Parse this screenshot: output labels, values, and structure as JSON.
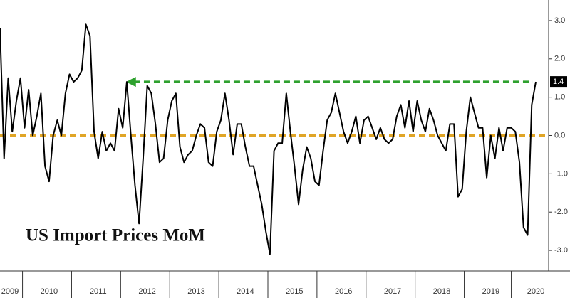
{
  "chart_data": {
    "type": "line",
    "title": "US Import Prices MoM",
    "categories": [
      "2009",
      null,
      null,
      null,
      null,
      null,
      null,
      null,
      null,
      null,
      null,
      null,
      "2010",
      null,
      null,
      null,
      null,
      null,
      null,
      null,
      null,
      null,
      null,
      null,
      "2011",
      null,
      null,
      null,
      null,
      null,
      null,
      null,
      null,
      null,
      null,
      null,
      "2012",
      null,
      null,
      null,
      null,
      null,
      null,
      null,
      null,
      null,
      null,
      null,
      "2013",
      null,
      null,
      null,
      null,
      null,
      null,
      null,
      null,
      null,
      null,
      null,
      "2014",
      null,
      null,
      null,
      null,
      null,
      null,
      null,
      null,
      null,
      null,
      null,
      "2015",
      null,
      null,
      null,
      null,
      null,
      null,
      null,
      null,
      null,
      null,
      null,
      "2016",
      null,
      null,
      null,
      null,
      null,
      null,
      null,
      null,
      null,
      null,
      null,
      "2017",
      null,
      null,
      null,
      null,
      null,
      null,
      null,
      null,
      null,
      null,
      null,
      "2018",
      null,
      null,
      null,
      null,
      null,
      null,
      null,
      null,
      null,
      null,
      null,
      "2019",
      null,
      null,
      null,
      null,
      null,
      null,
      null,
      null,
      null,
      null,
      "2020"
    ],
    "series": [
      {
        "name": "US Import Prices MoM",
        "color": "#000000",
        "values": [
          2.8,
          -0.6,
          1.5,
          0.1,
          0.9,
          1.5,
          0.2,
          1.2,
          0.0,
          0.5,
          1.1,
          -0.8,
          -1.2,
          0.0,
          0.4,
          0.0,
          1.1,
          1.6,
          1.4,
          1.5,
          1.7,
          2.9,
          2.6,
          0.1,
          -0.6,
          0.1,
          -0.4,
          -0.2,
          -0.4,
          0.7,
          0.2,
          1.4,
          0.0,
          -1.3,
          -2.3,
          -0.6,
          1.3,
          1.1,
          0.3,
          -0.7,
          -0.6,
          0.4,
          0.9,
          1.1,
          -0.3,
          -0.7,
          -0.5,
          -0.4,
          0.0,
          0.3,
          0.2,
          -0.7,
          -0.8,
          0.1,
          0.4,
          1.1,
          0.4,
          -0.5,
          0.3,
          0.3,
          -0.3,
          -0.8,
          -0.8,
          -1.3,
          -1.8,
          -2.5,
          -3.1,
          -0.4,
          -0.2,
          -0.2,
          1.1,
          0.1,
          -0.8,
          -1.8,
          -0.9,
          -0.3,
          -0.6,
          -1.2,
          -1.3,
          -0.4,
          0.4,
          0.6,
          1.1,
          0.6,
          0.1,
          -0.2,
          0.1,
          0.5,
          -0.2,
          0.4,
          0.5,
          0.2,
          -0.1,
          0.2,
          -0.1,
          -0.2,
          -0.1,
          0.5,
          0.8,
          0.2,
          0.9,
          0.1,
          0.9,
          0.4,
          0.1,
          0.7,
          0.4,
          0.0,
          -0.2,
          -0.4,
          0.3,
          0.3,
          -1.6,
          -1.4,
          0.1,
          1.0,
          0.6,
          0.2,
          0.2,
          -1.1,
          0.0,
          -0.6,
          0.2,
          -0.4,
          0.2,
          0.2,
          0.1,
          -0.7,
          -2.4,
          -2.6,
          0.8,
          1.4
        ]
      }
    ],
    "ylim": [
      -3.5,
      3.5
    ],
    "yticks": [
      {
        "value": -3,
        "label": "-3.0"
      },
      {
        "value": -2,
        "label": "-2.0"
      },
      {
        "value": -1,
        "label": "-1.0"
      },
      {
        "value": 0,
        "label": "0.0"
      },
      {
        "value": 1,
        "label": "1.0"
      },
      {
        "value": 2,
        "label": "2.0"
      },
      {
        "value": 3,
        "label": "3.0"
      }
    ],
    "reference_lines": [
      {
        "value": 1.4,
        "color": "#2ea12e",
        "arrow": true,
        "label_box": true
      },
      {
        "value": 0,
        "color": "#e0a526",
        "arrow": false,
        "label_box": false
      }
    ]
  }
}
